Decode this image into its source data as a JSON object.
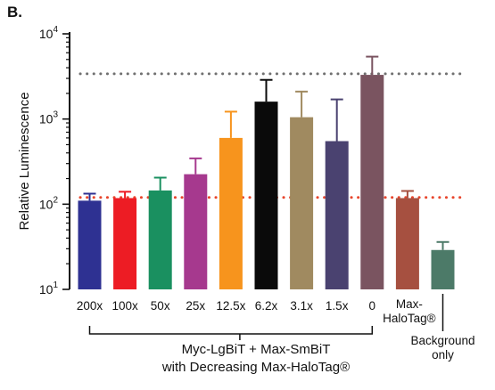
{
  "panel_label": "B.",
  "chart_data": {
    "type": "bar",
    "ylabel": "Relative Luminescence",
    "yscale": "log",
    "ylim": [
      10,
      10000
    ],
    "yticks": [
      {
        "value": 10,
        "base": "10",
        "exp": "1"
      },
      {
        "value": 100,
        "base": "10",
        "exp": "2"
      },
      {
        "value": 1000,
        "base": "10",
        "exp": "3"
      },
      {
        "value": 10000,
        "base": "10",
        "exp": "4"
      }
    ],
    "categories": [
      "200x",
      "100x",
      "50x",
      "25x",
      "12.5x",
      "6.2x",
      "3.1x",
      "1.5x",
      "0",
      "Max-HaloTag®",
      "Background only"
    ],
    "values": [
      110,
      118,
      145,
      225,
      600,
      1600,
      1050,
      550,
      3300,
      118,
      29
    ],
    "error_upper": [
      133,
      140,
      205,
      345,
      1220,
      2880,
      2100,
      1700,
      5400,
      143,
      36
    ],
    "colors": [
      "#2e3192",
      "#ed1c24",
      "#1a9060",
      "#a6398e",
      "#f7941d",
      "#0a0a0a",
      "#a08a60",
      "#4a4270",
      "#7a5460",
      "#a65040",
      "#4c7a68"
    ],
    "reference_lines": [
      {
        "value": 3400,
        "color": "#707070",
        "style": "dotted"
      },
      {
        "value": 120,
        "color": "#e8452c",
        "style": "dotted"
      }
    ],
    "group_label_line1": "Myc-LgBiT + Max-SmBiT",
    "group_label_line2": "with Decreasing Max-HaloTag®",
    "grid": false
  }
}
